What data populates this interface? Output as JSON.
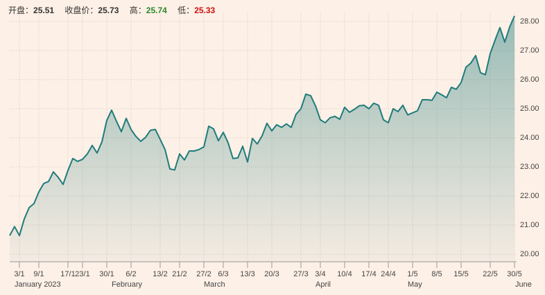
{
  "header": {
    "open_label": "开盘：",
    "open": 25.51,
    "close_label": "收盘价：",
    "close": 25.73,
    "high_label": "高：",
    "high": 25.74,
    "high_color": "#2a8a2a",
    "low_label": "低：",
    "low": 25.33,
    "low_color": "#cc1111"
  },
  "chart_data": {
    "type": "area",
    "color": "#1f7b7b",
    "grid": true,
    "categories": [
      null,
      null,
      "3/1",
      null,
      null,
      null,
      "9/1",
      null,
      null,
      null,
      null,
      null,
      "17/1",
      null,
      null,
      "23/1",
      null,
      null,
      null,
      null,
      "30/1",
      null,
      null,
      null,
      null,
      "6/2",
      null,
      null,
      null,
      null,
      null,
      "13/2",
      null,
      null,
      null,
      "21/2",
      null,
      null,
      null,
      null,
      "27/2",
      null,
      null,
      null,
      "6/3",
      null,
      null,
      null,
      null,
      "13/3",
      null,
      null,
      null,
      null,
      "20/3",
      null,
      null,
      null,
      null,
      null,
      "27/3",
      null,
      null,
      null,
      "3/4",
      null,
      null,
      null,
      null,
      "10/4",
      null,
      null,
      null,
      null,
      "17/4",
      null,
      null,
      null,
      "24/4",
      null,
      null,
      null,
      null,
      "1/5",
      null,
      null,
      null,
      null,
      "8/5",
      null,
      null,
      null,
      null,
      "15/5",
      null,
      null,
      null,
      null,
      null,
      "22/5",
      null,
      null,
      null,
      null,
      "30/5"
    ],
    "values": [
      20.64,
      20.95,
      20.64,
      21.21,
      21.6,
      21.74,
      22.14,
      22.43,
      22.5,
      22.83,
      22.64,
      22.4,
      22.88,
      23.29,
      23.19,
      23.26,
      23.45,
      23.74,
      23.48,
      23.86,
      24.6,
      24.95,
      24.57,
      24.21,
      24.67,
      24.29,
      24.05,
      23.88,
      24.02,
      24.26,
      24.29,
      23.95,
      23.6,
      22.93,
      22.9,
      23.45,
      23.24,
      23.55,
      23.55,
      23.6,
      23.69,
      24.4,
      24.31,
      23.9,
      24.19,
      23.83,
      23.29,
      23.31,
      23.71,
      23.17,
      23.98,
      23.79,
      24.07,
      24.5,
      24.24,
      24.45,
      24.36,
      24.48,
      24.36,
      24.81,
      25.0,
      25.5,
      25.45,
      25.1,
      24.62,
      24.52,
      24.69,
      24.74,
      24.64,
      25.05,
      24.88,
      24.98,
      25.1,
      25.12,
      25.0,
      25.19,
      25.12,
      24.62,
      24.52,
      25.0,
      24.9,
      25.12,
      24.79,
      24.86,
      24.93,
      25.31,
      25.31,
      25.29,
      25.57,
      25.48,
      25.38,
      25.74,
      25.67,
      25.9,
      26.43,
      26.57,
      26.83,
      26.24,
      26.17,
      26.9,
      27.36,
      27.79,
      27.29,
      27.81,
      28.19
    ],
    "months": [
      {
        "label": "January 2023",
        "index": 1
      },
      {
        "label": "February",
        "index": 21
      },
      {
        "label": "March",
        "index": 40
      },
      {
        "label": "April",
        "index": 63
      },
      {
        "label": "May",
        "index": 82
      },
      {
        "label": "June",
        "index": 104
      }
    ],
    "ylim": [
      19.74,
      28.31
    ],
    "yticks": [
      {
        "value": 20,
        "label": "20.00"
      },
      {
        "value": 21,
        "label": "21.00"
      },
      {
        "value": 22,
        "label": "22.00"
      },
      {
        "value": 23,
        "label": "23.00"
      },
      {
        "value": 24,
        "label": "24.00"
      },
      {
        "value": 25,
        "label": "25.00"
      },
      {
        "value": 26,
        "label": "26.00"
      },
      {
        "value": 27,
        "label": "27.00"
      },
      {
        "value": 28,
        "label": "28.00"
      }
    ]
  }
}
